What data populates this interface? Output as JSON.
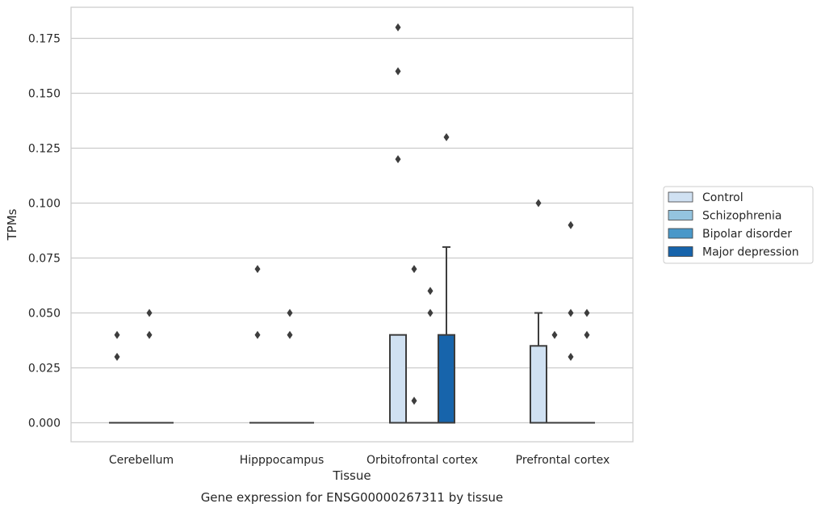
{
  "chart_data": {
    "type": "box",
    "xlabel": "Tissue",
    "ylabel": "TPMs",
    "caption": "Gene expression for ENSG00000267311 by tissue",
    "ylim": [
      -0.009,
      0.189
    ],
    "yticks": [
      "0.000",
      "0.025",
      "0.050",
      "0.075",
      "0.100",
      "0.125",
      "0.150",
      "0.175"
    ],
    "categories": [
      "Cerebellum",
      "Hipppocampus",
      "Orbitofrontal cortex",
      "Prefrontal cortex"
    ],
    "grid": "horizontal",
    "legend_position": "right",
    "series": [
      {
        "name": "Control",
        "color": "#d0e1f2",
        "boxes": [
          {
            "q1": 0,
            "median": 0,
            "q3": 0,
            "whislo": 0,
            "whishi": 0,
            "fliers": [
              0.03,
              0.04
            ]
          },
          {
            "q1": 0,
            "median": 0,
            "q3": 0,
            "whislo": 0,
            "whishi": 0,
            "fliers": [
              0.04,
              0.07
            ]
          },
          {
            "q1": 0,
            "median": 0,
            "q3": 0.04,
            "whislo": 0,
            "whishi": 0.04,
            "fliers": [
              0.12,
              0.16,
              0.18
            ]
          },
          {
            "q1": 0,
            "median": 0,
            "q3": 0.035,
            "whislo": 0,
            "whishi": 0.05,
            "fliers": [
              0.1
            ]
          }
        ]
      },
      {
        "name": "Schizophrenia",
        "color": "#94c4df",
        "boxes": [
          {
            "q1": 0,
            "median": 0,
            "q3": 0,
            "whislo": 0,
            "whishi": 0,
            "fliers": []
          },
          {
            "q1": 0,
            "median": 0,
            "q3": 0,
            "whislo": 0,
            "whishi": 0,
            "fliers": []
          },
          {
            "q1": 0,
            "median": 0,
            "q3": 0,
            "whislo": 0,
            "whishi": 0,
            "fliers": [
              0.01,
              0.07
            ]
          },
          {
            "q1": 0,
            "median": 0,
            "q3": 0,
            "whislo": 0,
            "whishi": 0,
            "fliers": [
              0.04
            ]
          }
        ]
      },
      {
        "name": "Bipolar disorder",
        "color": "#4a98c9",
        "boxes": [
          {
            "q1": 0,
            "median": 0,
            "q3": 0,
            "whislo": 0,
            "whishi": 0,
            "fliers": [
              0.04,
              0.05
            ]
          },
          {
            "q1": 0,
            "median": 0,
            "q3": 0,
            "whislo": 0,
            "whishi": 0,
            "fliers": [
              0.04,
              0.05
            ]
          },
          {
            "q1": 0,
            "median": 0,
            "q3": 0,
            "whislo": 0,
            "whishi": 0,
            "fliers": [
              0.05,
              0.06
            ]
          },
          {
            "q1": 0,
            "median": 0,
            "q3": 0,
            "whislo": 0,
            "whishi": 0,
            "fliers": [
              0.03,
              0.05,
              0.09
            ]
          }
        ]
      },
      {
        "name": "Major depression",
        "color": "#1764ab",
        "boxes": [
          {
            "q1": 0,
            "median": 0,
            "q3": 0,
            "whislo": 0,
            "whishi": 0,
            "fliers": []
          },
          {
            "q1": 0,
            "median": 0,
            "q3": 0,
            "whislo": 0,
            "whishi": 0,
            "fliers": []
          },
          {
            "q1": 0,
            "median": 0,
            "q3": 0.04,
            "whislo": 0,
            "whishi": 0.08,
            "fliers": [
              0.13
            ]
          },
          {
            "q1": 0,
            "median": 0,
            "q3": 0,
            "whislo": 0,
            "whishi": 0,
            "fliers": [
              0.04,
              0.05
            ]
          }
        ]
      }
    ]
  }
}
